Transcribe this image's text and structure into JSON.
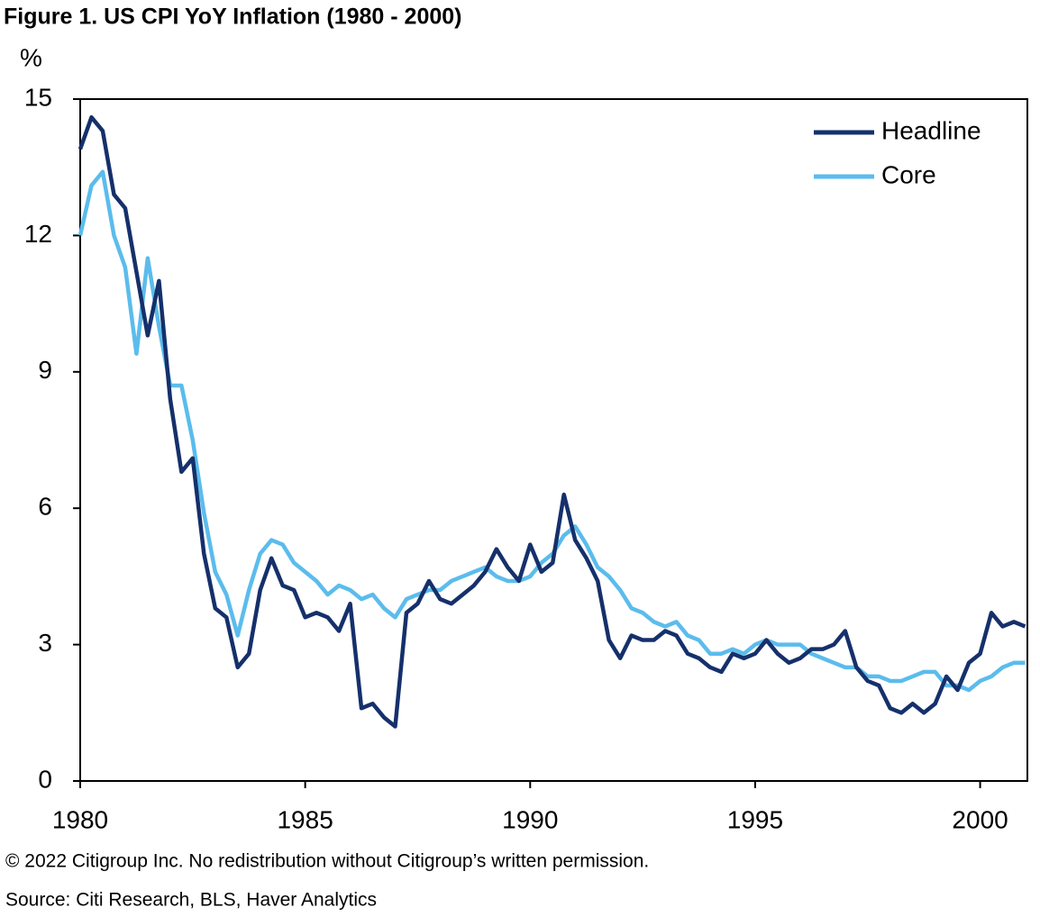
{
  "chart_data": {
    "type": "line",
    "title": "Figure 1. US CPI YoY Inflation (1980 - 2000)",
    "y_label": "%",
    "footnotes": [
      "© 2022 Citigroup Inc. No redistribution without Citigroup’s written permission.",
      "Source: Citi Research, BLS, Haver Analytics"
    ],
    "x": [
      1980,
      1980.25,
      1980.5,
      1980.75,
      1981,
      1981.25,
      1981.5,
      1981.75,
      1982,
      1982.25,
      1982.5,
      1982.75,
      1983,
      1983.25,
      1983.5,
      1983.75,
      1984,
      1984.25,
      1984.5,
      1984.75,
      1985,
      1985.25,
      1985.5,
      1985.75,
      1986,
      1986.25,
      1986.5,
      1986.75,
      1987,
      1987.25,
      1987.5,
      1987.75,
      1988,
      1988.25,
      1988.5,
      1988.75,
      1989,
      1989.25,
      1989.5,
      1989.75,
      1990,
      1990.25,
      1990.5,
      1990.75,
      1991,
      1991.25,
      1991.5,
      1991.75,
      1992,
      1992.25,
      1992.5,
      1992.75,
      1993,
      1993.25,
      1993.5,
      1993.75,
      1994,
      1994.25,
      1994.5,
      1994.75,
      1995,
      1995.25,
      1995.5,
      1995.75,
      1996,
      1996.25,
      1996.5,
      1996.75,
      1997,
      1997.25,
      1997.5,
      1997.75,
      1998,
      1998.25,
      1998.5,
      1998.75,
      1999,
      1999.25,
      1999.5,
      1999.75,
      2000,
      2000.25,
      2000.5,
      2000.75,
      2001
    ],
    "series": [
      {
        "name": "Headline",
        "color": "#15306b",
        "values": [
          13.9,
          14.6,
          14.3,
          12.9,
          12.6,
          11.2,
          9.8,
          11.0,
          8.4,
          6.8,
          7.1,
          5.0,
          3.8,
          3.6,
          2.5,
          2.8,
          4.2,
          4.9,
          4.3,
          4.2,
          3.6,
          3.7,
          3.6,
          3.3,
          3.9,
          1.6,
          1.7,
          1.4,
          1.2,
          3.7,
          3.9,
          4.4,
          4.0,
          3.9,
          4.1,
          4.3,
          4.6,
          5.1,
          4.7,
          4.4,
          5.2,
          4.6,
          4.8,
          6.3,
          5.3,
          4.9,
          4.4,
          3.1,
          2.7,
          3.2,
          3.1,
          3.1,
          3.3,
          3.2,
          2.8,
          2.7,
          2.5,
          2.4,
          2.8,
          2.7,
          2.8,
          3.1,
          2.8,
          2.6,
          2.7,
          2.9,
          2.9,
          3.0,
          3.3,
          2.5,
          2.2,
          2.1,
          1.6,
          1.5,
          1.7,
          1.5,
          1.7,
          2.3,
          2.0,
          2.6,
          2.8,
          3.7,
          3.4,
          3.5,
          3.4
        ]
      },
      {
        "name": "Core",
        "color": "#5bbcec",
        "values": [
          12.0,
          13.1,
          13.4,
          12.0,
          11.3,
          9.4,
          11.5,
          10.0,
          8.7,
          8.7,
          7.5,
          5.9,
          4.6,
          4.1,
          3.2,
          4.2,
          5.0,
          5.3,
          5.2,
          4.8,
          4.6,
          4.4,
          4.1,
          4.3,
          4.2,
          4.0,
          4.1,
          3.8,
          3.6,
          4.0,
          4.1,
          4.2,
          4.2,
          4.4,
          4.5,
          4.6,
          4.7,
          4.5,
          4.4,
          4.4,
          4.5,
          4.8,
          5.0,
          5.4,
          5.6,
          5.2,
          4.7,
          4.5,
          4.2,
          3.8,
          3.7,
          3.5,
          3.4,
          3.5,
          3.2,
          3.1,
          2.8,
          2.8,
          2.9,
          2.8,
          3.0,
          3.1,
          3.0,
          3.0,
          3.0,
          2.8,
          2.7,
          2.6,
          2.5,
          2.5,
          2.3,
          2.3,
          2.2,
          2.2,
          2.3,
          2.4,
          2.4,
          2.1,
          2.1,
          2.0,
          2.2,
          2.3,
          2.5,
          2.6,
          2.6
        ]
      }
    ],
    "xlim": [
      1980,
      2001.05
    ],
    "xticks": [
      1980,
      1985,
      1990,
      1995,
      2000
    ],
    "ylim": [
      0,
      15
    ],
    "yticks": [
      0,
      3,
      6,
      9,
      12,
      15
    ],
    "grid": false,
    "legend": "upper-right"
  }
}
